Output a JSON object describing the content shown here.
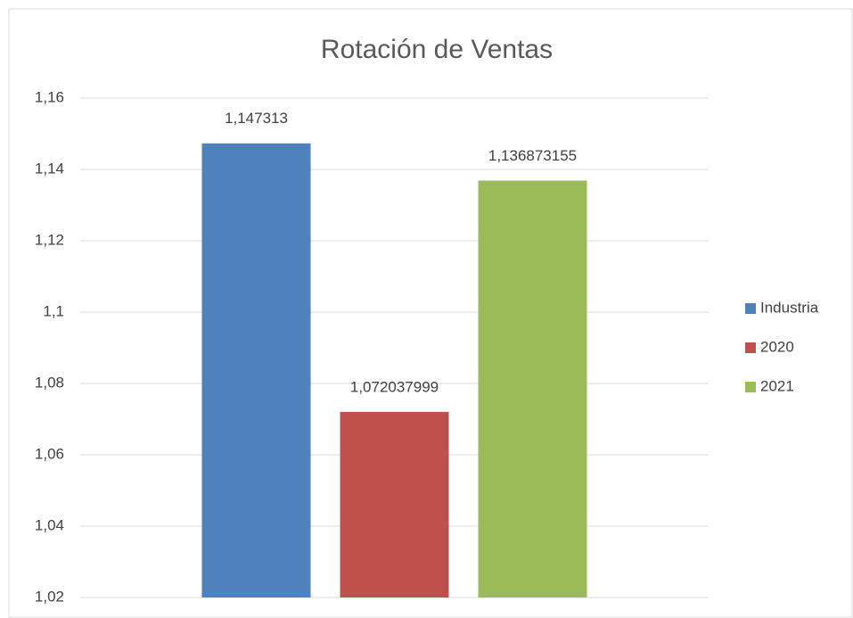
{
  "chart_data": {
    "type": "bar",
    "title": "Rotación de Ventas",
    "categories": [
      null
    ],
    "series": [
      {
        "name": "Industria",
        "color": "#4f81bd",
        "values": [
          1.147313
        ],
        "value_labels": [
          "1,147313"
        ]
      },
      {
        "name": "2020",
        "color": "#c0504d",
        "values": [
          1.072037999
        ],
        "value_labels": [
          "1,072037999"
        ]
      },
      {
        "name": "2021",
        "color": "#9bbb59",
        "values": [
          1.136873155
        ],
        "value_labels": [
          "1,136873155"
        ]
      }
    ],
    "ylim": [
      1.02,
      1.16
    ],
    "yticks": [
      {
        "value": 1.02,
        "label": "1,02"
      },
      {
        "value": 1.04,
        "label": "1,04"
      },
      {
        "value": 1.06,
        "label": "1,06"
      },
      {
        "value": 1.08,
        "label": "1,08"
      },
      {
        "value": 1.1,
        "label": "1,1"
      },
      {
        "value": 1.12,
        "label": "1,12"
      },
      {
        "value": 1.14,
        "label": "1,14"
      },
      {
        "value": 1.16,
        "label": "1,16"
      }
    ],
    "grid": true,
    "legend": "right"
  }
}
